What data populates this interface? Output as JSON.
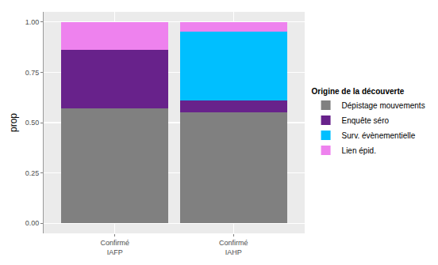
{
  "chart_data": {
    "type": "bar",
    "stacked": true,
    "categories": [
      "Confirmé\nIAFP",
      "Confirmé\nIAHP"
    ],
    "y_label": "prop",
    "legend_title": "Origine de la découverte",
    "legend": "right",
    "grid": true,
    "ylim": [
      -0.05,
      1.05
    ],
    "yticks": [
      {
        "value": 0,
        "label": "0.00"
      },
      {
        "value": 0.25,
        "label": "0.25"
      },
      {
        "value": 0.5,
        "label": "0.50"
      },
      {
        "value": 0.75,
        "label": "0.75"
      },
      {
        "value": 1,
        "label": "1.00"
      }
    ],
    "series": [
      {
        "name": "Dépistage mouvements",
        "color": "#808080",
        "values": [
          0.57,
          0.55
        ]
      },
      {
        "name": "Enquête séro",
        "color": "#68228B",
        "values": [
          0.29,
          0.06
        ]
      },
      {
        "name": "Surv. évènementielle",
        "color": "#00BFFF",
        "values": [
          0,
          0.34
        ]
      },
      {
        "name": "Lien épid.",
        "color": "#EE82EE",
        "values": [
          0.14,
          0.05
        ]
      }
    ]
  }
}
